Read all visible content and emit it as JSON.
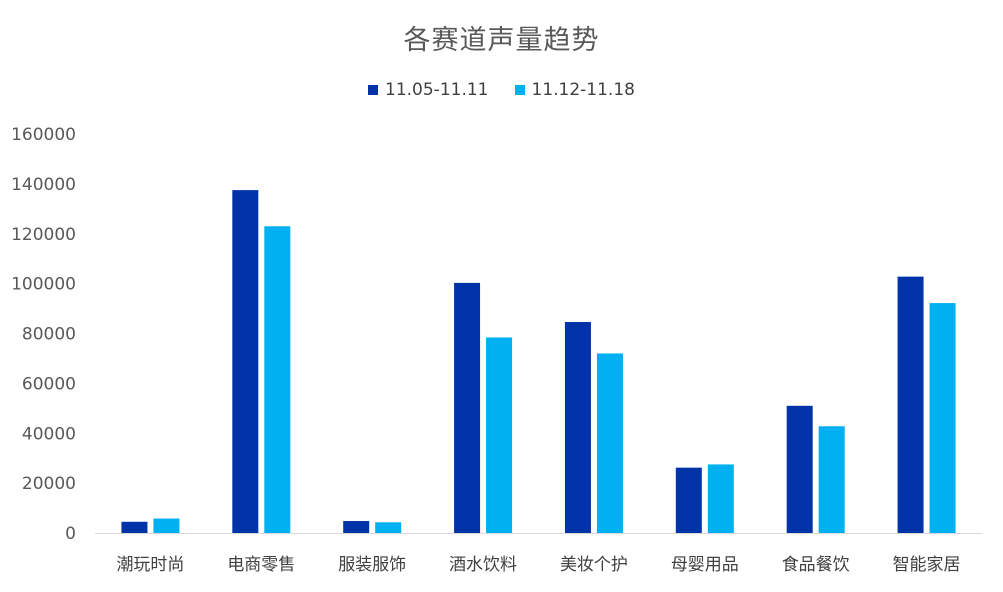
{
  "chart_data": {
    "type": "bar",
    "title": "各赛道声量趋势",
    "xlabel": "",
    "ylabel": "",
    "categories": [
      "潮玩时尚",
      "电商零售",
      "服装服饰",
      "酒水饮料",
      "美妆个护",
      "母婴用品",
      "食品餐饮",
      "智能家居"
    ],
    "series": [
      {
        "name": "11.05-11.11",
        "color": "#0033A8",
        "values": [
          4500,
          137500,
          4800,
          100300,
          84600,
          26200,
          51000,
          102800
        ]
      },
      {
        "name": "11.12-11.18",
        "color": "#00B0F0",
        "values": [
          5800,
          123000,
          4300,
          78400,
          72000,
          27500,
          42800,
          92200
        ]
      }
    ],
    "ylim": [
      0,
      160000
    ],
    "yticks": [
      0,
      20000,
      40000,
      60000,
      80000,
      100000,
      120000,
      140000,
      160000
    ],
    "grid": false,
    "legend_position": "top-center"
  }
}
